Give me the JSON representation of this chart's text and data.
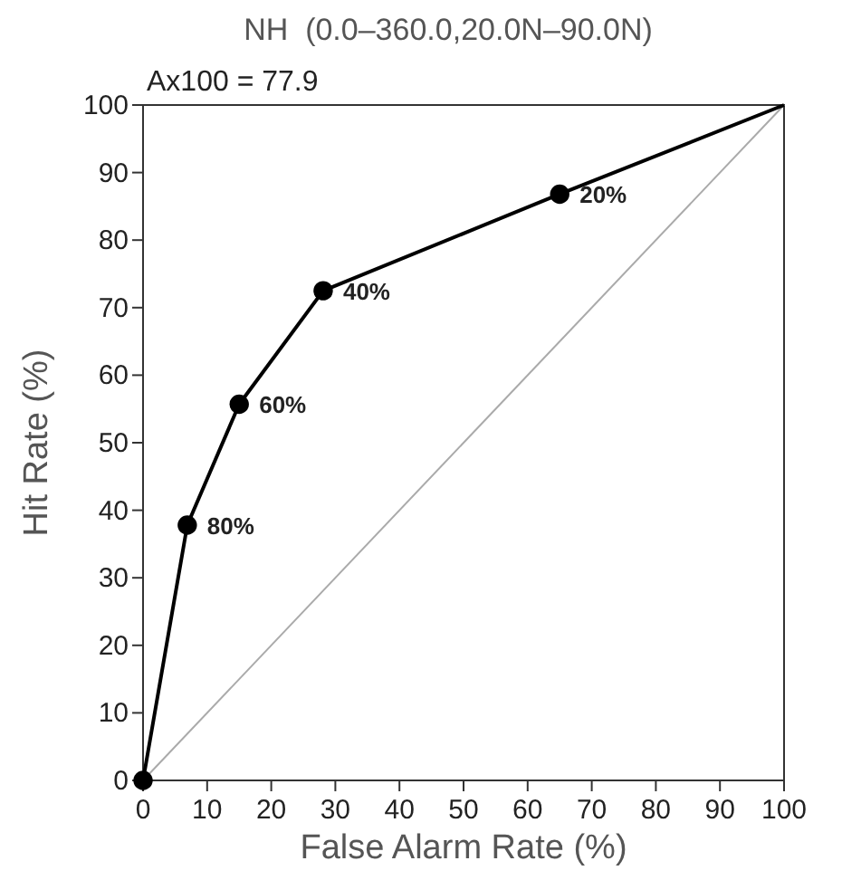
{
  "chart_data": {
    "type": "line",
    "title": "NH  (0.0–360.0,20.0N–90.0N)",
    "subtitle": "Ax100 = 77.9",
    "xlabel": "False Alarm Rate (%)",
    "ylabel": "Hit Rate (%)",
    "xlim": [
      0,
      100
    ],
    "ylim": [
      0,
      100
    ],
    "xticks": [
      0,
      10,
      20,
      30,
      40,
      50,
      60,
      70,
      80,
      90,
      100
    ],
    "yticks": [
      0,
      10,
      20,
      30,
      40,
      50,
      60,
      70,
      80,
      90,
      100
    ],
    "grid": false,
    "series": [
      {
        "type": "line",
        "color": "#aaaaaa",
        "x": [
          0,
          100
        ],
        "values": [
          0,
          100
        ],
        "marker": "none"
      },
      {
        "color": "#000000",
        "x": [
          0,
          6.9,
          15,
          28.1,
          65,
          100
        ],
        "values": [
          0,
          37.8,
          55.7,
          72.5,
          86.8,
          100
        ],
        "marker": "none"
      },
      {
        "type": "scatter",
        "color": "#000000",
        "x": [
          0,
          6.9,
          15,
          28.1,
          65
        ],
        "values": [
          0,
          37.8,
          55.7,
          72.5,
          86.8
        ],
        "marker": "circle"
      }
    ],
    "annotations": [
      {
        "text": "80%",
        "x": 6.9,
        "y": 37.8
      },
      {
        "text": "60%",
        "x": 15,
        "y": 55.7
      },
      {
        "text": "40%",
        "x": 28.1,
        "y": 72.5
      },
      {
        "text": "20%",
        "x": 65,
        "y": 86.8
      }
    ]
  }
}
